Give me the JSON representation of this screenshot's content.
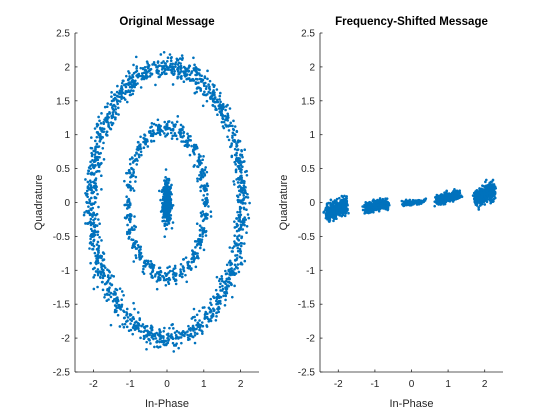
{
  "chart_data": [
    {
      "type": "scatter",
      "title": "Original Message",
      "xlabel": "In-Phase",
      "ylabel": "Quadrature",
      "xlim": [
        -2.5,
        2.5
      ],
      "ylim": [
        -2.5,
        2.5
      ],
      "xticks": [
        "-2",
        "-1",
        "0",
        "1",
        "2"
      ],
      "yticks": [
        "-2.5",
        "-2",
        "-1.5",
        "-1",
        "-0.5",
        "0",
        "0.5",
        "1",
        "1.5",
        "2",
        "2.5"
      ],
      "color": "#0072BD",
      "series": [
        {
          "name": "inner cluster",
          "shape": "ellipse",
          "center": [
            0,
            0
          ],
          "rx": 0.1,
          "ry": 0.27,
          "points": 420
        },
        {
          "name": "middle ring",
          "shape": "ellipse",
          "center": [
            0,
            0
          ],
          "rx": 1.05,
          "ry": 1.1,
          "points": 620
        },
        {
          "name": "outer ring",
          "shape": "ellipse",
          "center": [
            0,
            0
          ],
          "rx": 2.05,
          "ry": 2.0,
          "points": 1500
        }
      ]
    },
    {
      "type": "scatter",
      "title": "Frequency-Shifted Message",
      "xlabel": "In-Phase",
      "ylabel": "Quadrature",
      "xlim": [
        -2.5,
        2.5
      ],
      "ylim": [
        -2.5,
        2.5
      ],
      "xticks": [
        "-2",
        "-1",
        "0",
        "1",
        "2"
      ],
      "yticks": [
        "-2.5",
        "-2",
        "-1.5",
        "-1",
        "-0.5",
        "0",
        "0.5",
        "1",
        "1.5",
        "2",
        "2.5"
      ],
      "color": "#0072BD",
      "series": [
        {
          "name": "cluster at -2",
          "center": [
            -2.05,
            -0.1
          ],
          "width": 0.55,
          "height": 0.25,
          "points": 500
        },
        {
          "name": "cluster at -1",
          "center": [
            -0.95,
            -0.05
          ],
          "width": 0.65,
          "height": 0.17,
          "points": 320
        },
        {
          "name": "cluster at 0",
          "center": [
            0.05,
            0.0
          ],
          "width": 0.6,
          "height": 0.08,
          "points": 150
        },
        {
          "name": "cluster at 1",
          "center": [
            1.0,
            0.07
          ],
          "width": 0.65,
          "height": 0.18,
          "points": 320
        },
        {
          "name": "cluster at 2",
          "center": [
            2.0,
            0.12
          ],
          "width": 0.55,
          "height": 0.26,
          "points": 500
        }
      ]
    }
  ]
}
